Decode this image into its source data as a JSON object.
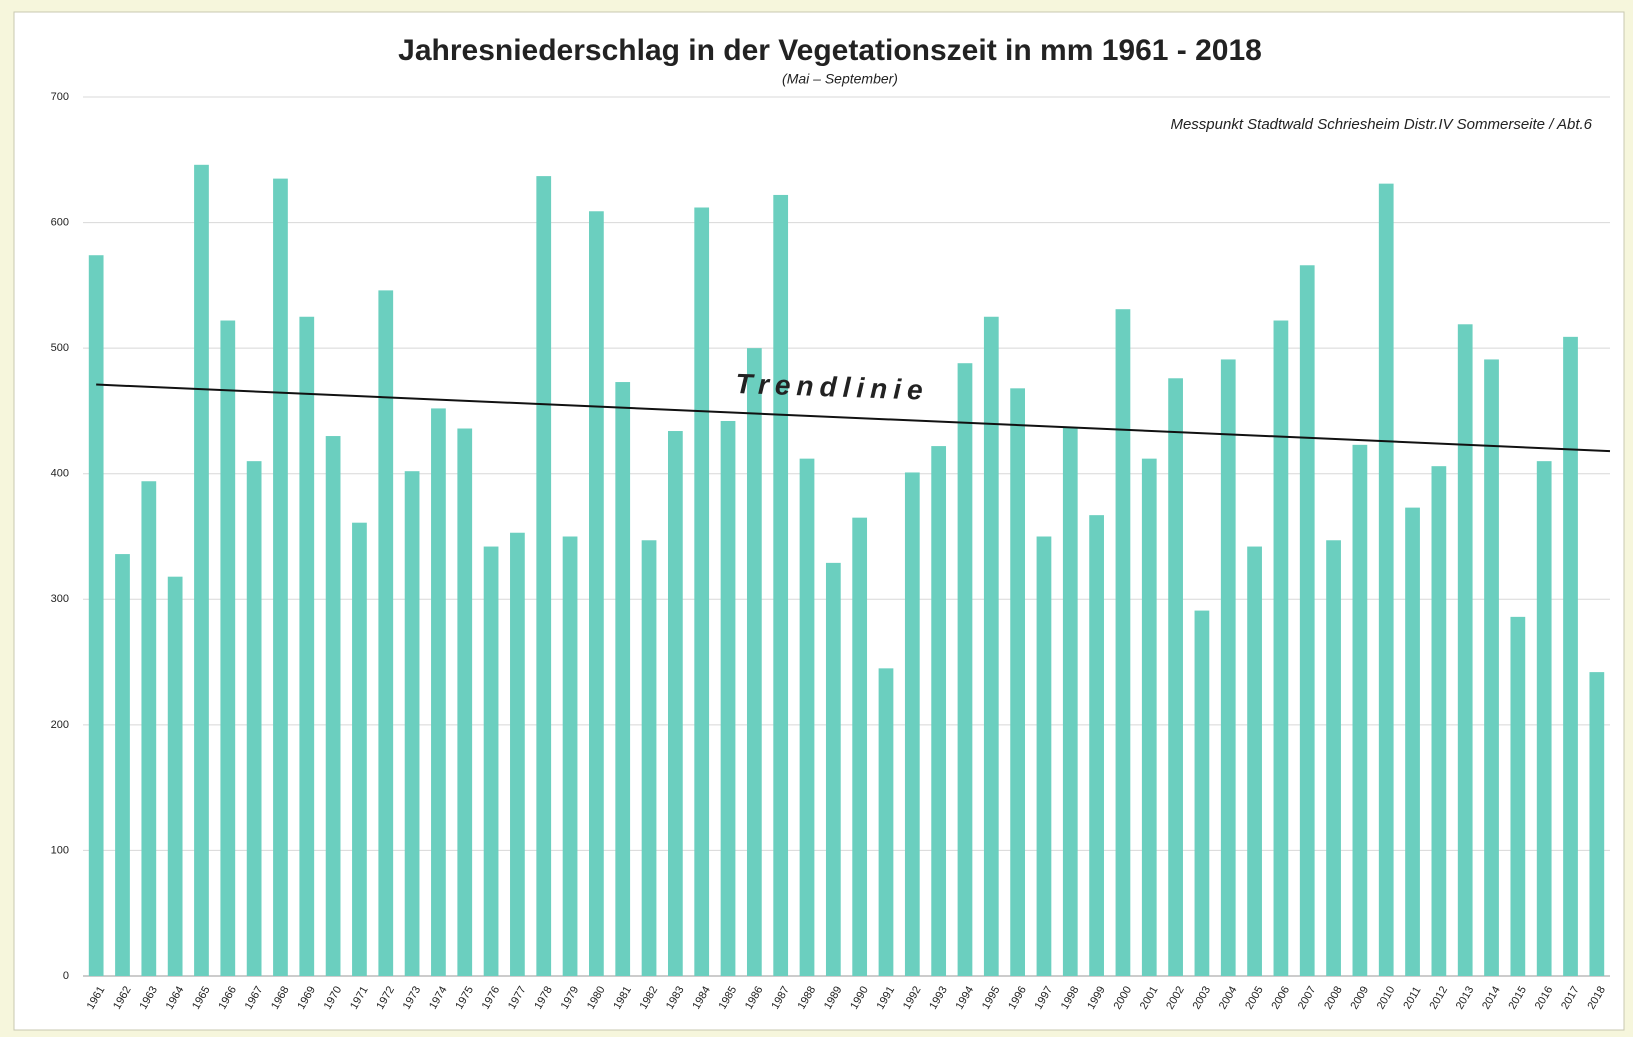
{
  "chart_data": {
    "type": "bar",
    "title": "Jahresniederschlag in der Vegetationszeit  in mm   1961 - 2018",
    "subtitle": "(Mai – September)",
    "annotation": "Messpunkt Stadtwald Schriesheim Distr.IV Sommerseite / Abt.6",
    "categories": [
      "1961",
      "1962",
      "1963",
      "1964",
      "1965",
      "1966",
      "1967",
      "1968",
      "1969",
      "1970",
      "1971",
      "1972",
      "1973",
      "1974",
      "1975",
      "1976",
      "1977",
      "1978",
      "1979",
      "1980",
      "1981",
      "1982",
      "1983",
      "1984",
      "1985",
      "1986",
      "1987",
      "1988",
      "1989",
      "1990",
      "1991",
      "1992",
      "1993",
      "1994",
      "1995",
      "1996",
      "1997",
      "1998",
      "1999",
      "2000",
      "2001",
      "2002",
      "2003",
      "2004",
      "2005",
      "2006",
      "2007",
      "2008",
      "2009",
      "2010",
      "2011",
      "2012",
      "2013",
      "2014",
      "2015",
      "2016",
      "2017",
      "2018"
    ],
    "values": [
      574,
      336,
      394,
      318,
      646,
      522,
      410,
      635,
      525,
      430,
      361,
      546,
      402,
      452,
      436,
      342,
      353,
      637,
      350,
      609,
      473,
      347,
      434,
      612,
      442,
      500,
      622,
      412,
      329,
      365,
      245,
      401,
      422,
      488,
      525,
      468,
      350,
      437,
      367,
      531,
      412,
      476,
      291,
      491,
      342,
      522,
      566,
      347,
      423,
      631,
      373,
      406,
      519,
      491,
      286,
      410,
      509,
      242
    ],
    "color": "#6bcfbf",
    "trendline": {
      "label": "Trendlinie",
      "values": [
        471,
        418
      ],
      "color": "#111111"
    },
    "ylim": [
      0,
      700
    ],
    "yticks": [
      0,
      100,
      200,
      300,
      400,
      500,
      600,
      700
    ],
    "grid": true
  }
}
